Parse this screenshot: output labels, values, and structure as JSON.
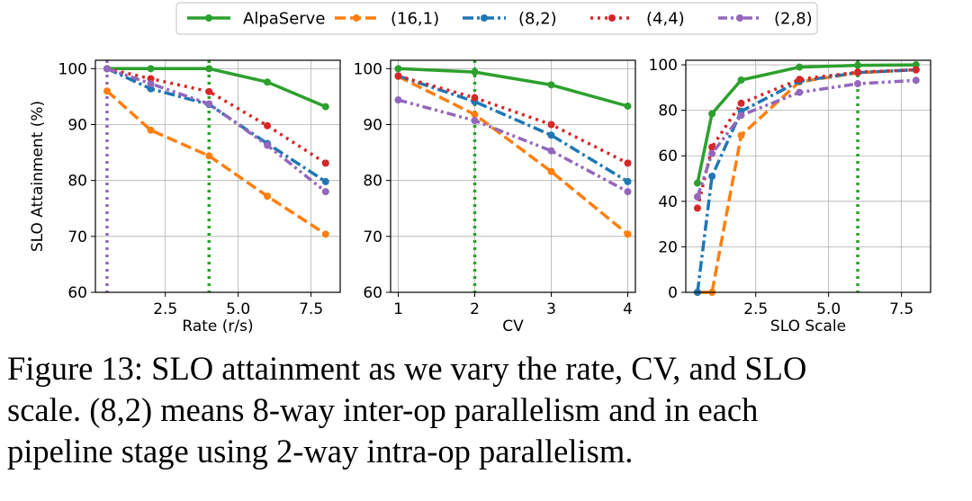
{
  "legend": {
    "items": [
      {
        "label": "AlpaServe",
        "color": "#2ca02c",
        "dash": "solid"
      },
      {
        "label": "(16,1)",
        "color": "#ff7f0e",
        "dash": "dashed"
      },
      {
        "label": "(8,2)",
        "color": "#1f77b4",
        "dash": "dashdot"
      },
      {
        "label": "(4,4)",
        "color": "#d62728",
        "dash": "dotted"
      },
      {
        "label": "(2,8)",
        "color": "#9467bd",
        "dash": "dashdotdot"
      }
    ]
  },
  "chart_data": [
    {
      "type": "line",
      "xlabel": "Rate (r/s)",
      "ylabel": "SLO Attainment (%)",
      "xlim": [
        0.1,
        8.5
      ],
      "ylim": [
        60,
        101.5
      ],
      "xticks": [
        2.5,
        5.0,
        7.5
      ],
      "xtick_labels": [
        "2.5",
        "5.0",
        "7.5"
      ],
      "yticks": [
        60,
        70,
        80,
        90,
        100
      ],
      "ytick_labels": [
        "60",
        "70",
        "80",
        "90",
        "100"
      ],
      "grid": true,
      "vlines": [
        {
          "x": 0.5,
          "color": "#9467bd"
        },
        {
          "x": 4.0,
          "color": "#2ca02c"
        }
      ],
      "x": [
        0.5,
        2,
        4,
        6,
        8
      ],
      "series": [
        {
          "name": "AlpaServe",
          "values": [
            100,
            100,
            100,
            97.6,
            93.2
          ]
        },
        {
          "name": "(16,1)",
          "values": [
            96,
            89,
            84.4,
            77.2,
            70.4
          ]
        },
        {
          "name": "(8,2)",
          "values": [
            100,
            96.4,
            93.6,
            86.6,
            79.8
          ]
        },
        {
          "name": "(4,4)",
          "values": [
            100,
            98.2,
            95.9,
            89.8,
            83.1
          ]
        },
        {
          "name": "(2,8)",
          "values": [
            100,
            97.3,
            93.7,
            86.3,
            78
          ]
        }
      ]
    },
    {
      "type": "line",
      "xlabel": "CV",
      "ylabel": "",
      "xlim": [
        0.9,
        4.1
      ],
      "ylim": [
        60,
        101.5
      ],
      "xticks": [
        1,
        2,
        3,
        4
      ],
      "xtick_labels": [
        "1",
        "2",
        "3",
        "4"
      ],
      "yticks": [
        60,
        70,
        80,
        90,
        100
      ],
      "ytick_labels": [
        "60",
        "70",
        "80",
        "90",
        "100"
      ],
      "grid": true,
      "vlines": [
        {
          "x": 2,
          "color": "#2ca02c"
        }
      ],
      "x": [
        1,
        2,
        3,
        4
      ],
      "series": [
        {
          "name": "AlpaServe",
          "values": [
            100,
            99.4,
            97.1,
            93.3
          ]
        },
        {
          "name": "(16,1)",
          "values": [
            98.6,
            91.8,
            81.6,
            70.4
          ]
        },
        {
          "name": "(8,2)",
          "values": [
            98.7,
            94.1,
            88.1,
            79.8
          ]
        },
        {
          "name": "(4,4)",
          "values": [
            98.7,
            94.8,
            90,
            83.1
          ]
        },
        {
          "name": "(2,8)",
          "values": [
            94.4,
            90.7,
            85.3,
            78
          ]
        }
      ]
    },
    {
      "type": "line",
      "xlabel": "SLO Scale",
      "ylabel": "",
      "xlim": [
        0.1,
        8.5
      ],
      "ylim": [
        0,
        102
      ],
      "xticks": [
        2.5,
        5.0,
        7.5
      ],
      "xtick_labels": [
        "2.5",
        "5.0",
        "7.5"
      ],
      "yticks": [
        0,
        20,
        40,
        60,
        80,
        100
      ],
      "ytick_labels": [
        "0",
        "20",
        "40",
        "60",
        "80",
        "100"
      ],
      "grid": true,
      "vlines": [
        {
          "x": 6,
          "color": "#2ca02c"
        }
      ],
      "x": [
        0.5,
        1,
        2,
        4,
        6,
        8
      ],
      "series": [
        {
          "name": "AlpaServe",
          "values": [
            48,
            78.5,
            93.3,
            99,
            99.8,
            100
          ]
        },
        {
          "name": "(16,1)",
          "values": [
            0,
            0,
            69,
            92.5,
            96.5,
            97.8
          ]
        },
        {
          "name": "(8,2)",
          "values": [
            0,
            51,
            79.6,
            92.8,
            96.6,
            97.8
          ]
        },
        {
          "name": "(4,4)",
          "values": [
            37,
            63.8,
            83.1,
            93.6,
            96.8,
            97.8
          ]
        },
        {
          "name": "(2,8)",
          "values": [
            42,
            61,
            77.8,
            87.9,
            91.7,
            93.2
          ]
        }
      ]
    }
  ],
  "caption": {
    "line1": "Figure 13: SLO attainment as we vary the rate, CV, and SLO",
    "line2": "scale. (8,2) means 8-way inter-op parallelism and in each",
    "line3": "pipeline stage using 2-way intra-op parallelism."
  }
}
